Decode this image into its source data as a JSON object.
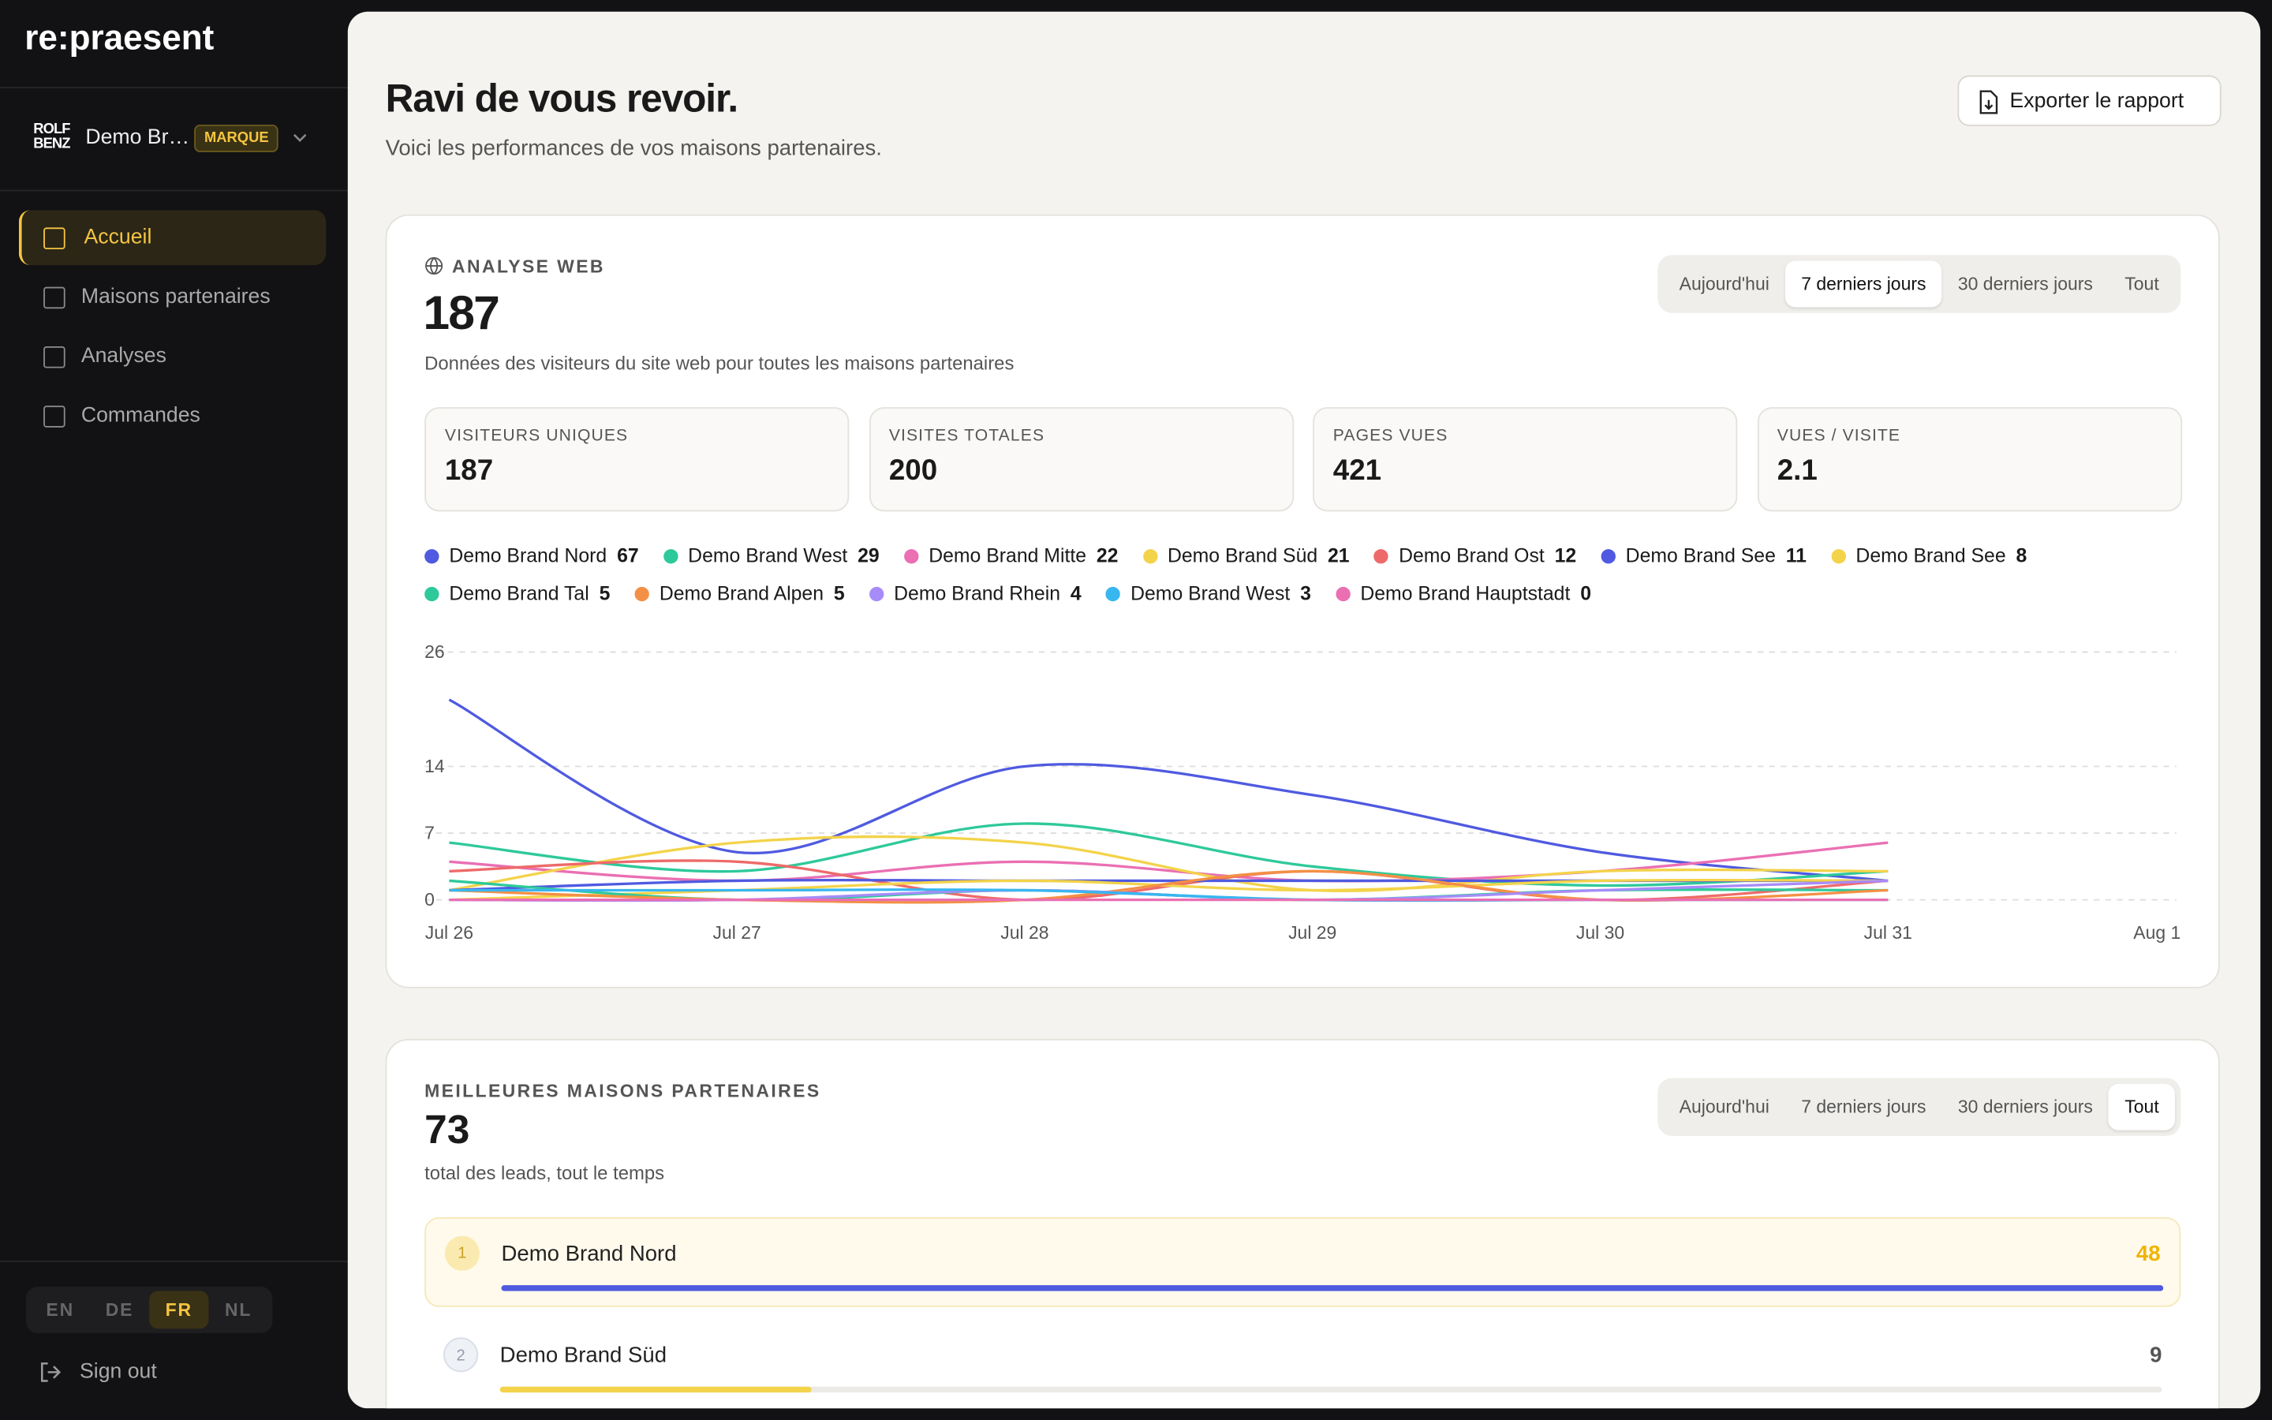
{
  "sidebar": {
    "brand": "re:praesent",
    "org_logo": [
      "ROLF",
      "BENZ"
    ],
    "org_name": "Demo Br…",
    "org_badge": "MARQUE",
    "nav": [
      "Accueil",
      "Maisons partenaires",
      "Analyses",
      "Commandes"
    ],
    "nav_active": 0,
    "languages": [
      "EN",
      "DE",
      "FR",
      "NL"
    ],
    "language_active": 2,
    "sign_out": "Sign out"
  },
  "header": {
    "title": "Ravi de vous revoir.",
    "subtitle": "Voici les performances de vos maisons partenaires.",
    "export": "Exporter le rapport"
  },
  "web": {
    "label": "ANALYSE WEB",
    "total": 187,
    "description": "Données des visiteurs du site web pour toutes les maisons partenaires",
    "ranges": [
      "Aujourd'hui",
      "7 derniers jours",
      "30 derniers jours",
      "Tout"
    ],
    "range_active": 1,
    "stats": [
      {
        "label": "VISITEURS UNIQUES",
        "value": 187
      },
      {
        "label": "VISITES TOTALES",
        "value": 200
      },
      {
        "label": "PAGES VUES",
        "value": 421
      },
      {
        "label": "VUES / VISITE",
        "value": 2.1
      }
    ],
    "chart": {
      "type": "line",
      "categories": [
        "Jul 26",
        "Jul 27",
        "Jul 28",
        "Jul 29",
        "Jul 30",
        "Jul 31",
        "Aug 1"
      ],
      "ylim": [
        0,
        26
      ],
      "yticks": [
        0,
        7,
        14,
        26
      ],
      "grid": true,
      "series": [
        {
          "name": "Demo Brand Nord",
          "total": 67,
          "color": "#4f5ae0",
          "values": [
            21,
            5,
            14,
            11,
            5,
            2,
            null
          ]
        },
        {
          "name": "Demo Brand West",
          "total": 29,
          "color": "#2ec99a",
          "values": [
            6,
            3,
            8,
            3.5,
            1.5,
            3,
            null
          ]
        },
        {
          "name": "Demo Brand Mitte",
          "total": 22,
          "color": "#ea6fb3",
          "values": [
            4,
            2,
            4,
            2,
            3,
            6,
            null
          ]
        },
        {
          "name": "Demo Brand Süd",
          "total": 21,
          "color": "#f3d34a",
          "values": [
            1,
            6,
            6,
            1,
            3,
            3,
            null
          ]
        },
        {
          "name": "Demo Brand Ost",
          "total": 12,
          "color": "#ee6a6a",
          "values": [
            3,
            4,
            0,
            3,
            0,
            2,
            null
          ]
        },
        {
          "name": "Demo Brand See",
          "total": 11,
          "color": "#4f5ae0",
          "values": [
            1,
            2,
            2,
            2,
            2,
            2,
            null
          ]
        },
        {
          "name": "Demo Brand See",
          "total": 8,
          "color": "#f3d34a",
          "values": [
            0,
            1,
            2,
            1,
            2,
            2,
            null
          ]
        },
        {
          "name": "Demo Brand Tal",
          "total": 5,
          "color": "#2ec99a",
          "values": [
            2,
            0,
            1,
            0,
            1,
            1,
            null
          ]
        },
        {
          "name": "Demo Brand Alpen",
          "total": 5,
          "color": "#f39045",
          "values": [
            1,
            0,
            0,
            3,
            0,
            1,
            null
          ]
        },
        {
          "name": "Demo Brand Rhein",
          "total": 4,
          "color": "#a78bfa",
          "values": [
            0,
            0,
            1,
            0,
            1,
            2,
            null
          ]
        },
        {
          "name": "Demo Brand West",
          "total": 3,
          "color": "#38b6f0",
          "values": [
            1,
            1,
            1,
            0,
            0,
            0,
            null
          ]
        },
        {
          "name": "Demo Brand Hauptstadt",
          "total": 0,
          "color": "#ea6fb3",
          "values": [
            0,
            0,
            0,
            0,
            0,
            0,
            null
          ]
        }
      ]
    }
  },
  "leaders": {
    "label": "MEILLEURES MAISONS PARTENAIRES",
    "total": 73,
    "description": "total des leads, tout le temps",
    "ranges": [
      "Aujourd'hui",
      "7 derniers jours",
      "30 derniers jours",
      "Tout"
    ],
    "range_active": 3,
    "items": [
      {
        "rank": 1,
        "name": "Demo Brand Nord",
        "value": 48,
        "color": "#4f5ae0"
      },
      {
        "rank": 2,
        "name": "Demo Brand Süd",
        "value": 9,
        "color": "#f3d34a"
      }
    ]
  }
}
